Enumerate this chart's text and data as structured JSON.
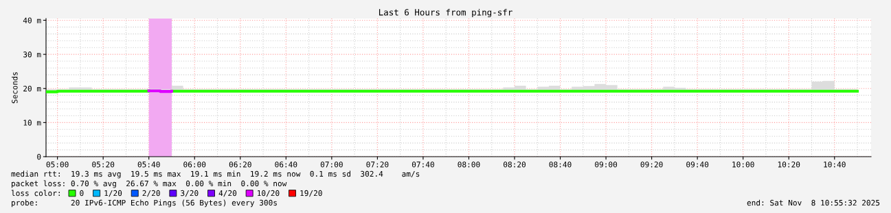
{
  "chart_data": {
    "type": "step",
    "title": "Last 6 Hours from ping-sfr",
    "ylabel": "Seconds",
    "legend_title": "loss color:",
    "legend": "bottom",
    "grid": true,
    "x": [
      "2025-11-08T04:55",
      "2025-11-08T05:00",
      "2025-11-08T05:05",
      "2025-11-08T05:10",
      "2025-11-08T05:15",
      "2025-11-08T05:20",
      "2025-11-08T05:25",
      "2025-11-08T05:30",
      "2025-11-08T05:35",
      "2025-11-08T05:40",
      "2025-11-08T05:45",
      "2025-11-08T05:50",
      "2025-11-08T05:55",
      "2025-11-08T06:00",
      "2025-11-08T06:05",
      "2025-11-08T06:10",
      "2025-11-08T06:15",
      "2025-11-08T06:20",
      "2025-11-08T06:25",
      "2025-11-08T06:30",
      "2025-11-08T06:35",
      "2025-11-08T06:40",
      "2025-11-08T06:45",
      "2025-11-08T06:50",
      "2025-11-08T06:55",
      "2025-11-08T07:00",
      "2025-11-08T07:05",
      "2025-11-08T07:10",
      "2025-11-08T07:15",
      "2025-11-08T07:20",
      "2025-11-08T07:25",
      "2025-11-08T07:30",
      "2025-11-08T07:35",
      "2025-11-08T07:40",
      "2025-11-08T07:45",
      "2025-11-08T07:50",
      "2025-11-08T07:55",
      "2025-11-08T08:00",
      "2025-11-08T08:05",
      "2025-11-08T08:10",
      "2025-11-08T08:15",
      "2025-11-08T08:20",
      "2025-11-08T08:25",
      "2025-11-08T08:30",
      "2025-11-08T08:35",
      "2025-11-08T08:40",
      "2025-11-08T08:45",
      "2025-11-08T08:50",
      "2025-11-08T08:55",
      "2025-11-08T09:00",
      "2025-11-08T09:05",
      "2025-11-08T09:10",
      "2025-11-08T09:15",
      "2025-11-08T09:20",
      "2025-11-08T09:25",
      "2025-11-08T09:30",
      "2025-11-08T09:35",
      "2025-11-08T09:40",
      "2025-11-08T09:45",
      "2025-11-08T09:50",
      "2025-11-08T09:55",
      "2025-11-08T10:00",
      "2025-11-08T10:05",
      "2025-11-08T10:10",
      "2025-11-08T10:15",
      "2025-11-08T10:20",
      "2025-11-08T10:25",
      "2025-11-08T10:30",
      "2025-11-08T10:35",
      "2025-11-08T10:40",
      "2025-11-08T10:45",
      "2025-11-08T10:50"
    ],
    "series": [
      {
        "name": "0",
        "color": "#26ff00",
        "values": [
          19.0,
          19.2,
          19.2,
          19.2,
          19.2,
          19.2,
          19.2,
          19.2,
          19.2,
          19.3,
          null,
          19.2,
          19.2,
          19.2,
          19.2,
          19.2,
          19.2,
          19.2,
          19.2,
          19.2,
          19.2,
          19.2,
          19.2,
          19.2,
          19.2,
          19.2,
          19.2,
          19.2,
          19.2,
          19.2,
          19.2,
          19.2,
          19.2,
          19.2,
          19.2,
          19.2,
          19.2,
          19.2,
          19.2,
          19.2,
          19.2,
          19.2,
          19.2,
          19.2,
          19.2,
          19.2,
          19.2,
          19.2,
          19.2,
          19.2,
          19.2,
          19.2,
          19.2,
          19.2,
          19.2,
          19.2,
          19.2,
          19.2,
          19.2,
          19.2,
          19.2,
          19.2,
          19.2,
          19.2,
          19.2,
          19.2,
          19.2,
          19.2,
          19.2,
          19.2,
          19.2,
          19.2
        ],
        "lower": [
          18.9,
          18.9,
          18.9,
          18.9,
          18.9,
          18.9,
          18.9,
          18.9,
          18.9,
          18.9,
          18.9,
          18.9,
          18.9,
          18.9,
          18.9,
          18.9,
          18.9,
          18.9,
          18.9,
          18.9,
          18.9,
          18.9,
          18.9,
          18.9,
          18.9,
          18.9,
          18.9,
          18.9,
          18.9,
          18.9,
          18.9,
          18.9,
          18.9,
          18.9,
          18.9,
          18.9,
          18.9,
          18.9,
          18.9,
          18.9,
          18.9,
          18.9,
          18.9,
          18.9,
          18.9,
          18.9,
          18.9,
          18.9,
          18.9,
          18.9,
          18.9,
          18.9,
          18.9,
          18.9,
          18.9,
          18.9,
          18.9,
          18.9,
          18.9,
          18.9,
          18.9,
          18.9,
          18.9,
          18.9,
          18.9,
          18.9,
          18.9,
          18.9,
          18.9,
          18.9,
          18.9,
          18.9
        ],
        "upper": [
          19.8,
          19.8,
          20.3,
          20.3,
          19.8,
          19.8,
          19.8,
          19.8,
          19.8,
          19.9,
          19.8,
          20.8,
          19.8,
          19.8,
          19.8,
          19.8,
          19.8,
          19.8,
          19.8,
          19.8,
          19.8,
          19.8,
          19.8,
          19.8,
          19.8,
          19.8,
          19.8,
          19.8,
          19.8,
          19.8,
          19.8,
          19.8,
          19.8,
          19.8,
          19.8,
          19.8,
          19.8,
          19.8,
          19.8,
          19.8,
          20.3,
          20.8,
          19.8,
          20.5,
          20.8,
          19.8,
          20.5,
          20.7,
          21.3,
          21.0,
          19.8,
          19.8,
          19.8,
          19.8,
          20.5,
          20.2,
          19.8,
          19.8,
          19.8,
          19.8,
          19.8,
          19.8,
          19.8,
          19.8,
          19.8,
          19.8,
          19.8,
          22.0,
          22.2,
          19.8,
          19.8,
          19.8
        ]
      },
      {
        "name": "1/20",
        "color": "#00b8ff",
        "values": [
          null,
          null,
          null,
          null,
          null,
          null,
          null,
          null,
          null,
          null,
          null,
          null,
          null,
          null,
          null,
          null,
          null,
          null,
          null,
          null,
          null,
          null,
          null,
          null,
          null,
          null,
          null,
          null,
          null,
          null,
          null,
          null,
          null,
          null,
          null,
          null,
          null,
          null,
          null,
          null,
          null,
          null,
          null,
          null,
          null,
          null,
          null,
          null,
          null,
          null,
          null,
          null,
          null,
          null,
          null,
          null,
          null,
          null,
          null,
          null,
          null,
          null,
          null,
          null,
          null,
          null,
          null,
          null,
          null,
          null,
          null,
          null
        ]
      },
      {
        "name": "2/20",
        "color": "#0059ff",
        "values": [
          null,
          null,
          null,
          null,
          null,
          null,
          null,
          null,
          null,
          null,
          null,
          null,
          null,
          null,
          null,
          null,
          null,
          null,
          null,
          null,
          null,
          null,
          null,
          null,
          null,
          null,
          null,
          null,
          null,
          null,
          null,
          null,
          null,
          null,
          null,
          null,
          null,
          null,
          null,
          null,
          null,
          null,
          null,
          null,
          null,
          null,
          null,
          null,
          null,
          null,
          null,
          null,
          null,
          null,
          null,
          null,
          null,
          null,
          null,
          null,
          null,
          null,
          null,
          null,
          null,
          null,
          null,
          null,
          null,
          null,
          null,
          null
        ]
      },
      {
        "name": "3/20",
        "color": "#5e00ff",
        "values": [
          null,
          null,
          null,
          null,
          null,
          null,
          null,
          null,
          null,
          null,
          null,
          null,
          null,
          null,
          null,
          null,
          null,
          null,
          null,
          null,
          null,
          null,
          null,
          null,
          null,
          null,
          null,
          null,
          null,
          null,
          null,
          null,
          null,
          null,
          null,
          null,
          null,
          null,
          null,
          null,
          null,
          null,
          null,
          null,
          null,
          null,
          null,
          null,
          null,
          null,
          null,
          null,
          null,
          null,
          null,
          null,
          null,
          null,
          null,
          null,
          null,
          null,
          null,
          null,
          null,
          null,
          null,
          null,
          null,
          null,
          null,
          null
        ]
      },
      {
        "name": "4/20",
        "color": "#7e00ff",
        "values": [
          null,
          null,
          null,
          null,
          null,
          null,
          null,
          null,
          null,
          null,
          null,
          null,
          null,
          null,
          null,
          null,
          null,
          null,
          null,
          null,
          null,
          null,
          null,
          null,
          null,
          null,
          null,
          null,
          null,
          null,
          null,
          null,
          null,
          null,
          null,
          null,
          null,
          null,
          null,
          null,
          null,
          null,
          null,
          null,
          null,
          null,
          null,
          null,
          null,
          null,
          null,
          null,
          null,
          null,
          null,
          null,
          null,
          null,
          null,
          null,
          null,
          null,
          null,
          null,
          null,
          null,
          null,
          null,
          null,
          null,
          null,
          null
        ]
      },
      {
        "name": "10/20",
        "color": "#dd00ff",
        "values": [
          null,
          null,
          null,
          null,
          null,
          null,
          null,
          null,
          null,
          19.3,
          19.1,
          19.2,
          null,
          null,
          null,
          null,
          null,
          null,
          null,
          null,
          null,
          null,
          null,
          null,
          null,
          null,
          null,
          null,
          null,
          null,
          null,
          null,
          null,
          null,
          null,
          null,
          null,
          null,
          null,
          null,
          null,
          null,
          null,
          null,
          null,
          null,
          null,
          null,
          null,
          null,
          null,
          null,
          null,
          null,
          null,
          null,
          null,
          null,
          null,
          null,
          null,
          null,
          null,
          null,
          null,
          null,
          null,
          null,
          null,
          null,
          null,
          null
        ]
      },
      {
        "name": "19/20",
        "color": "#ff0000",
        "values": [
          null,
          null,
          null,
          null,
          null,
          null,
          null,
          null,
          null,
          null,
          null,
          null,
          null,
          null,
          null,
          null,
          null,
          null,
          null,
          null,
          null,
          null,
          null,
          null,
          null,
          null,
          null,
          null,
          null,
          null,
          null,
          null,
          null,
          null,
          null,
          null,
          null,
          null,
          null,
          null,
          null,
          null,
          null,
          null,
          null,
          null,
          null,
          null,
          null,
          null,
          null,
          null,
          null,
          null,
          null,
          null,
          null,
          null,
          null,
          null,
          null,
          null,
          null,
          null,
          null,
          null,
          null,
          null,
          null,
          null,
          null,
          null
        ]
      }
    ],
    "bands": [
      {
        "axis": "x",
        "from": "2025-11-08T05:40",
        "to": "2025-11-08T05:50",
        "color": "#f2a9f2"
      }
    ],
    "xlim": [
      "2025-11-08T04:55",
      "2025-11-08T10:56"
    ],
    "xticks": [
      {
        "value": "2025-11-08T05:00",
        "label": "05:00"
      },
      {
        "value": "2025-11-08T05:20",
        "label": "05:20"
      },
      {
        "value": "2025-11-08T05:40",
        "label": "05:40"
      },
      {
        "value": "2025-11-08T06:00",
        "label": "06:00"
      },
      {
        "value": "2025-11-08T06:20",
        "label": "06:20"
      },
      {
        "value": "2025-11-08T06:40",
        "label": "06:40"
      },
      {
        "value": "2025-11-08T07:00",
        "label": "07:00"
      },
      {
        "value": "2025-11-08T07:20",
        "label": "07:20"
      },
      {
        "value": "2025-11-08T07:40",
        "label": "07:40"
      },
      {
        "value": "2025-11-08T08:00",
        "label": "08:00"
      },
      {
        "value": "2025-11-08T08:20",
        "label": "08:20"
      },
      {
        "value": "2025-11-08T08:40",
        "label": "08:40"
      },
      {
        "value": "2025-11-08T09:00",
        "label": "09:00"
      },
      {
        "value": "2025-11-08T09:20",
        "label": "09:20"
      },
      {
        "value": "2025-11-08T09:40",
        "label": "09:40"
      },
      {
        "value": "2025-11-08T10:00",
        "label": "10:00"
      },
      {
        "value": "2025-11-08T10:20",
        "label": "10:20"
      },
      {
        "value": "2025-11-08T10:40",
        "label": "10:40"
      }
    ],
    "ylim": [
      0,
      40.5
    ],
    "yticks": [
      0,
      {
        "value": 10,
        "label": "10 m"
      },
      {
        "value": 20,
        "label": "20 m"
      },
      {
        "value": 30,
        "label": "30 m"
      },
      {
        "value": 40,
        "label": "40 m"
      }
    ],
    "annotations": [
      "median rtt:  19.3 ms avg  19.5 ms max  19.1 ms min  19.2 ms now  0.1 ms sd  302.4    am/s",
      "packet loss: 0.70 % avg  26.67 % max  0.00 % min  0.00 % now",
      "probe:       20 IPv6-ICMP Echo Pings (56 Bytes) every 300s",
      "end: Sat Nov  8 10:55:32 2025"
    ]
  }
}
